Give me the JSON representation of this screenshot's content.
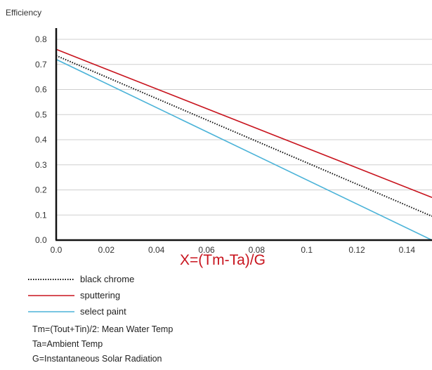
{
  "chart_data": {
    "type": "line",
    "ylabel": "Efficiency",
    "xlabel": "X=(Tm-Ta)/G",
    "xlim": [
      0,
      0.15
    ],
    "ylim": [
      0,
      0.8
    ],
    "x_ticks": [
      {
        "value": 0,
        "label": "0.0"
      },
      {
        "value": 0.02,
        "label": "0.02"
      },
      {
        "value": 0.04,
        "label": "0.04"
      },
      {
        "value": 0.06,
        "label": "0.06"
      },
      {
        "value": 0.08,
        "label": "0.08"
      },
      {
        "value": 0.1,
        "label": "0.1"
      },
      {
        "value": 0.12,
        "label": "0.12"
      },
      {
        "value": 0.14,
        "label": "0.14"
      }
    ],
    "y_ticks": [
      {
        "value": 0,
        "label": "0.0"
      },
      {
        "value": 0.1,
        "label": "0.1"
      },
      {
        "value": 0.2,
        "label": "0.2"
      },
      {
        "value": 0.3,
        "label": "0.3"
      },
      {
        "value": 0.4,
        "label": "0.4"
      },
      {
        "value": 0.5,
        "label": "0.5"
      },
      {
        "value": 0.6,
        "label": "0.6"
      },
      {
        "value": 0.7,
        "label": "0.7"
      },
      {
        "value": 0.8,
        "label": "0.8"
      }
    ],
    "grid": "horizontal",
    "legend_position": "bottom-left",
    "series": [
      {
        "name": "black chrome",
        "color": "#111111",
        "style": "dotted",
        "x": [
          0,
          0.15
        ],
        "y": [
          0.735,
          0.095
        ]
      },
      {
        "name": "sputtering",
        "color": "#c8141e",
        "style": "solid",
        "x": [
          0,
          0.15
        ],
        "y": [
          0.76,
          0.17
        ]
      },
      {
        "name": "select paint",
        "color": "#4bb3d8",
        "style": "solid",
        "x": [
          0,
          0.15
        ],
        "y": [
          0.72,
          0.0
        ]
      }
    ]
  },
  "notes": [
    "Tm=(Tout+Tin)/2: Mean Water Temp",
    "Ta=Ambient Temp",
    "G=Instantaneous Solar Radiation"
  ]
}
